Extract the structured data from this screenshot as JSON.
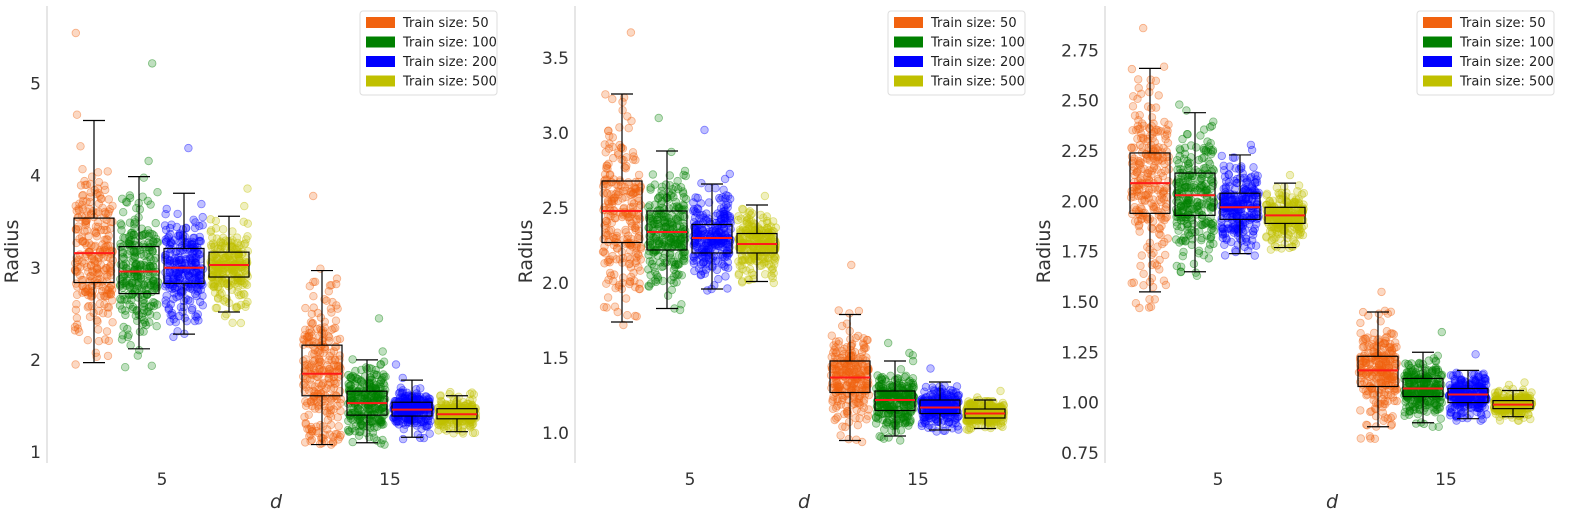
{
  "chart_data": [
    {
      "type": "boxplot",
      "categories": [
        "5",
        "15"
      ],
      "xlabel": "d",
      "ylabel": "Radius",
      "ylim": [
        0.88,
        5.8
      ],
      "yticks": [
        1,
        2,
        3,
        4,
        5
      ],
      "ytick_labels": [
        "1",
        "2",
        "3",
        "4",
        "5"
      ],
      "legend": {
        "position": "top-right",
        "entries": [
          "Train size: 50",
          "Train size: 100",
          "Train size: 200",
          "Train size: 500"
        ]
      },
      "series": [
        {
          "name": "Train size: 50",
          "color": "#f1620f",
          "boxes": [
            {
              "category": "5",
              "whislo": 1.97,
              "q1": 2.84,
              "median": 3.16,
              "q3": 3.54,
              "whishi": 4.6,
              "scatter_min": 1.95,
              "scatter_max": 5.55
            },
            {
              "category": "15",
              "whislo": 1.08,
              "q1": 1.61,
              "median": 1.85,
              "q3": 2.16,
              "whishi": 2.97,
              "scatter_min": 1.08,
              "scatter_max": 3.78
            }
          ]
        },
        {
          "name": "Train size: 100",
          "color": "#008000",
          "boxes": [
            {
              "category": "5",
              "whislo": 2.12,
              "q1": 2.72,
              "median": 2.96,
              "q3": 3.23,
              "whishi": 3.99,
              "scatter_min": 1.92,
              "scatter_max": 5.22
            },
            {
              "category": "15",
              "whislo": 1.1,
              "q1": 1.4,
              "median": 1.53,
              "q3": 1.66,
              "whishi": 2.0,
              "scatter_min": 1.08,
              "scatter_max": 2.45
            }
          ]
        },
        {
          "name": "Train size: 200",
          "color": "#0000ff",
          "boxes": [
            {
              "category": "5",
              "whislo": 2.28,
              "q1": 2.83,
              "median": 3.0,
              "q3": 3.21,
              "whishi": 3.81,
              "scatter_min": 2.25,
              "scatter_max": 4.3
            },
            {
              "category": "15",
              "whislo": 1.16,
              "q1": 1.39,
              "median": 1.46,
              "q3": 1.54,
              "whishi": 1.78,
              "scatter_min": 1.14,
              "scatter_max": 1.95
            }
          ]
        },
        {
          "name": "Train size: 500",
          "color": "#c0c000",
          "boxes": [
            {
              "category": "5",
              "whislo": 2.52,
              "q1": 2.9,
              "median": 3.03,
              "q3": 3.17,
              "whishi": 3.56,
              "scatter_min": 2.4,
              "scatter_max": 3.86
            },
            {
              "category": "15",
              "whislo": 1.22,
              "q1": 1.36,
              "median": 1.41,
              "q3": 1.47,
              "whishi": 1.61,
              "scatter_min": 1.2,
              "scatter_max": 1.65
            }
          ]
        }
      ]
    },
    {
      "type": "boxplot",
      "categories": [
        "5",
        "15"
      ],
      "xlabel": "d",
      "ylabel": "Radius",
      "ylim": [
        0.8,
        3.82
      ],
      "yticks": [
        1.0,
        1.5,
        2.0,
        2.5,
        3.0,
        3.5
      ],
      "ytick_labels": [
        "1.0",
        "1.5",
        "2.0",
        "2.5",
        "3.0",
        "3.5"
      ],
      "legend": {
        "position": "top-right",
        "entries": [
          "Train size: 50",
          "Train size: 100",
          "Train size: 200",
          "Train size: 500"
        ]
      },
      "series": [
        {
          "name": "Train size: 50",
          "color": "#f1620f",
          "boxes": [
            {
              "category": "5",
              "whislo": 1.74,
              "q1": 2.27,
              "median": 2.48,
              "q3": 2.68,
              "whishi": 3.26,
              "scatter_min": 1.72,
              "scatter_max": 3.67
            },
            {
              "category": "15",
              "whislo": 0.95,
              "q1": 1.27,
              "median": 1.37,
              "q3": 1.48,
              "whishi": 1.79,
              "scatter_min": 0.94,
              "scatter_max": 2.12
            }
          ]
        },
        {
          "name": "Train size: 100",
          "color": "#008000",
          "boxes": [
            {
              "category": "5",
              "whislo": 1.83,
              "q1": 2.22,
              "median": 2.34,
              "q3": 2.48,
              "whishi": 2.88,
              "scatter_min": 1.82,
              "scatter_max": 3.1
            },
            {
              "category": "15",
              "whislo": 0.98,
              "q1": 1.15,
              "median": 1.22,
              "q3": 1.28,
              "whishi": 1.48,
              "scatter_min": 0.95,
              "scatter_max": 1.6
            }
          ]
        },
        {
          "name": "Train size: 200",
          "color": "#0000ff",
          "boxes": [
            {
              "category": "5",
              "whislo": 1.96,
              "q1": 2.2,
              "median": 2.3,
              "q3": 2.39,
              "whishi": 2.66,
              "scatter_min": 1.95,
              "scatter_max": 3.02
            },
            {
              "category": "15",
              "whislo": 1.02,
              "q1": 1.13,
              "median": 1.17,
              "q3": 1.22,
              "whishi": 1.34,
              "scatter_min": 1.01,
              "scatter_max": 1.43
            }
          ]
        },
        {
          "name": "Train size: 500",
          "color": "#c0c000",
          "boxes": [
            {
              "category": "5",
              "whislo": 2.01,
              "q1": 2.2,
              "median": 2.26,
              "q3": 2.33,
              "whishi": 2.52,
              "scatter_min": 2.0,
              "scatter_max": 2.58
            },
            {
              "category": "15",
              "whislo": 1.03,
              "q1": 1.1,
              "median": 1.13,
              "q3": 1.16,
              "whishi": 1.22,
              "scatter_min": 1.02,
              "scatter_max": 1.28
            }
          ]
        }
      ]
    },
    {
      "type": "boxplot",
      "categories": [
        "5",
        "15"
      ],
      "xlabel": "d",
      "ylabel": "Radius",
      "ylim": [
        0.7,
        2.95
      ],
      "yticks": [
        0.75,
        1.0,
        1.25,
        1.5,
        1.75,
        2.0,
        2.25,
        2.5,
        2.75
      ],
      "ytick_labels": [
        "0.75",
        "1.00",
        "1.25",
        "1.50",
        "1.75",
        "2.00",
        "2.25",
        "2.50",
        "2.75"
      ],
      "legend": {
        "position": "top-right",
        "entries": [
          "Train size: 50",
          "Train size: 100",
          "Train size: 200",
          "Train size: 500"
        ]
      },
      "series": [
        {
          "name": "Train size: 50",
          "color": "#f1620f",
          "boxes": [
            {
              "category": "5",
              "whislo": 1.55,
              "q1": 1.94,
              "median": 2.09,
              "q3": 2.24,
              "whishi": 2.66,
              "scatter_min": 1.47,
              "scatter_max": 2.86
            },
            {
              "category": "15",
              "whislo": 0.88,
              "q1": 1.08,
              "median": 1.16,
              "q3": 1.23,
              "whishi": 1.45,
              "scatter_min": 0.82,
              "scatter_max": 1.55
            }
          ]
        },
        {
          "name": "Train size: 100",
          "color": "#008000",
          "boxes": [
            {
              "category": "5",
              "whislo": 1.65,
              "q1": 1.93,
              "median": 2.03,
              "q3": 2.14,
              "whishi": 2.44,
              "scatter_min": 1.63,
              "scatter_max": 2.48
            },
            {
              "category": "15",
              "whislo": 0.9,
              "q1": 1.03,
              "median": 1.07,
              "q3": 1.12,
              "whishi": 1.25,
              "scatter_min": 0.88,
              "scatter_max": 1.35
            }
          ]
        },
        {
          "name": "Train size: 200",
          "color": "#0000ff",
          "boxes": [
            {
              "category": "5",
              "whislo": 1.74,
              "q1": 1.91,
              "median": 1.97,
              "q3": 2.04,
              "whishi": 2.23,
              "scatter_min": 1.73,
              "scatter_max": 2.28
            },
            {
              "category": "15",
              "whislo": 0.92,
              "q1": 1.0,
              "median": 1.04,
              "q3": 1.07,
              "whishi": 1.16,
              "scatter_min": 0.91,
              "scatter_max": 1.24
            }
          ]
        },
        {
          "name": "Train size: 500",
          "color": "#c0c000",
          "boxes": [
            {
              "category": "5",
              "whislo": 1.77,
              "q1": 1.89,
              "median": 1.93,
              "q3": 1.97,
              "whishi": 2.09,
              "scatter_min": 1.76,
              "scatter_max": 2.13
            },
            {
              "category": "15",
              "whislo": 0.93,
              "q1": 0.97,
              "median": 0.99,
              "q3": 1.01,
              "whishi": 1.06,
              "scatter_min": 0.91,
              "scatter_max": 1.1
            }
          ]
        }
      ]
    }
  ]
}
